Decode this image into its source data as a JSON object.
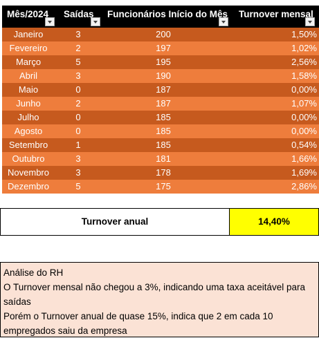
{
  "headers": {
    "mes": "Mês/2024",
    "saidas": "Saídas",
    "funcionarios": "Funcionários Início do Mês",
    "turnover": "Turnover mensal"
  },
  "rows": [
    {
      "mes": "Janeiro",
      "saidas": "3",
      "funcionarios": "200",
      "turnover": "1,50%"
    },
    {
      "mes": "Fevereiro",
      "saidas": "2",
      "funcionarios": "197",
      "turnover": "1,02%"
    },
    {
      "mes": "Março",
      "saidas": "5",
      "funcionarios": "195",
      "turnover": "2,56%"
    },
    {
      "mes": "Abril",
      "saidas": "3",
      "funcionarios": "190",
      "turnover": "1,58%"
    },
    {
      "mes": "Maio",
      "saidas": "0",
      "funcionarios": "187",
      "turnover": "0,00%"
    },
    {
      "mes": "Junho",
      "saidas": "2",
      "funcionarios": "187",
      "turnover": "1,07%"
    },
    {
      "mes": "Julho",
      "saidas": "0",
      "funcionarios": "185",
      "turnover": "0,00%"
    },
    {
      "mes": "Agosto",
      "saidas": "0",
      "funcionarios": "185",
      "turnover": "0,00%"
    },
    {
      "mes": "Setembro",
      "saidas": "1",
      "funcionarios": "185",
      "turnover": "0,54%"
    },
    {
      "mes": "Outubro",
      "saidas": "3",
      "funcionarios": "181",
      "turnover": "1,66%"
    },
    {
      "mes": "Novembro",
      "saidas": "3",
      "funcionarios": "178",
      "turnover": "1,69%"
    },
    {
      "mes": "Dezembro",
      "saidas": "5",
      "funcionarios": "175",
      "turnover": "2,86%"
    }
  ],
  "total": {
    "label": "Turnover anual",
    "value": "14,40%"
  },
  "analysis": {
    "title": "Análise do RH",
    "line1": "O Turnover mensal não chegou a 3%, indicando uma taxa aceitável para saídas",
    "line2": "Porém o Turnover anual de quase 15%, indica que 2 em cada 10 empregados saiu da empresa"
  },
  "colors": {
    "header": "#000000",
    "row_dark": "#c65a1e",
    "row_light": "#ee7d3c",
    "highlight": "#ffff00",
    "note_bg": "#fbe2d5"
  }
}
